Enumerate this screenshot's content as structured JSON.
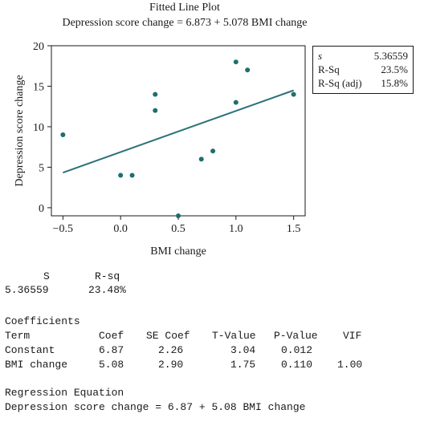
{
  "chart_data": {
    "type": "scatter",
    "title": "Fitted Line Plot",
    "subtitle": "Depression score change = 6.873 + 5.078 BMI change",
    "xlabel": "BMI change",
    "ylabel": "Depression score change",
    "xlim": [
      -0.6,
      1.6
    ],
    "ylim": [
      -1,
      20
    ],
    "xticks": [
      -0.5,
      0.0,
      0.5,
      1.0,
      1.5
    ],
    "xtick_labels": [
      "−0.5",
      "0.0",
      "0.5",
      "1.0",
      "1.5"
    ],
    "yticks": [
      0,
      5,
      10,
      15,
      20
    ],
    "ytick_labels": [
      "0",
      "5",
      "10",
      "15",
      "20"
    ],
    "grid": false,
    "point_color": "#1f6e6e",
    "line_color": "#2a7278",
    "points": [
      {
        "x": -0.5,
        "y": 9
      },
      {
        "x": 0.0,
        "y": 4
      },
      {
        "x": 0.1,
        "y": 4
      },
      {
        "x": 0.3,
        "y": 14
      },
      {
        "x": 0.3,
        "y": 12
      },
      {
        "x": 0.5,
        "y": -1
      },
      {
        "x": 0.7,
        "y": 6
      },
      {
        "x": 0.8,
        "y": 7
      },
      {
        "x": 1.0,
        "y": 18
      },
      {
        "x": 1.0,
        "y": 13
      },
      {
        "x": 1.1,
        "y": 17
      },
      {
        "x": 1.5,
        "y": 14
      }
    ],
    "fit": {
      "intercept": 6.873,
      "slope": 5.078,
      "x_range": [
        -0.5,
        1.5
      ]
    }
  },
  "stats_box": [
    {
      "label": "s",
      "value": "5.36559",
      "italic": true
    },
    {
      "label": "R-Sq",
      "value": "23.5%"
    },
    {
      "label": "R-Sq (adj)",
      "value": "15.8%"
    }
  ],
  "summary": {
    "header_s": "S",
    "header_rsq": "R-sq",
    "value_s": "5.36559",
    "value_rsq": "23.48%"
  },
  "coefficients": {
    "heading": "Coefficients",
    "headers": [
      "Term",
      "Coef",
      "SE Coef",
      "T-Value",
      "P-Value",
      "VIF"
    ],
    "rows": [
      [
        "Constant",
        "6.87",
        "2.26",
        "3.04",
        "0.012",
        ""
      ],
      [
        "BMI change",
        "5.08",
        "2.90",
        "1.75",
        "0.110",
        "1.00"
      ]
    ]
  },
  "regression": {
    "heading": "Regression Equation",
    "equation": "Depression score change = 6.87 + 5.08 BMI change"
  }
}
